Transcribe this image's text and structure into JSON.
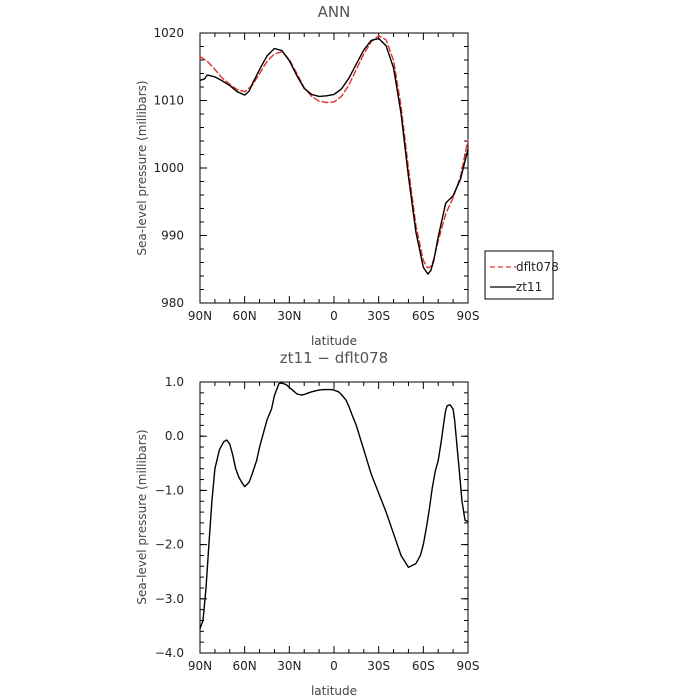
{
  "chart_data": [
    {
      "type": "line",
      "title": "ANN",
      "xlabel": "latitude",
      "ylabel": "Sea-level pressure (millibars)",
      "xlim": [
        90,
        -90
      ],
      "ylim": [
        980,
        1020
      ],
      "x_ticks": [
        90,
        60,
        30,
        0,
        -30,
        -60,
        -90
      ],
      "x_tick_labels": [
        "90N",
        "60N",
        "30N",
        "0",
        "30S",
        "60S",
        "90S"
      ],
      "y_ticks": [
        980,
        990,
        1000,
        1010,
        1020
      ],
      "y_tick_labels": [
        "980",
        "990",
        "1000",
        "1010",
        "1020"
      ],
      "legend_position": "right",
      "series": [
        {
          "name": "dflt078",
          "color": "#e03030",
          "dash": "dashed",
          "x": [
            90,
            85,
            80,
            75,
            70,
            65,
            60,
            55,
            50,
            45,
            40,
            35,
            30,
            25,
            20,
            15,
            10,
            5,
            0,
            -5,
            -10,
            -15,
            -20,
            -25,
            -30,
            -35,
            -40,
            -45,
            -50,
            -55,
            -60,
            -63,
            -65,
            -67,
            -70,
            -75,
            -80,
            -85,
            -90
          ],
          "values": [
            1016.5,
            1015.8,
            1014.6,
            1013.3,
            1012.4,
            1011.6,
            1011.3,
            1012.2,
            1014.0,
            1015.8,
            1016.9,
            1017.2,
            1016.1,
            1014.0,
            1011.9,
            1010.6,
            1009.9,
            1009.7,
            1009.8,
            1010.6,
            1012.3,
            1014.6,
            1016.9,
            1018.7,
            1019.6,
            1019.0,
            1015.9,
            1009.2,
            1000.0,
            991.5,
            986.3,
            985.2,
            985.4,
            986.5,
            989.2,
            993.2,
            995.6,
            998.8,
            1004.2
          ]
        },
        {
          "name": "zt11",
          "color": "#000000",
          "dash": "solid",
          "x": [
            90,
            87,
            85,
            80,
            75,
            70,
            65,
            60,
            57,
            55,
            50,
            45,
            40,
            35,
            30,
            25,
            20,
            15,
            10,
            5,
            0,
            -5,
            -10,
            -15,
            -20,
            -25,
            -30,
            -35,
            -40,
            -45,
            -50,
            -55,
            -60,
            -63,
            -65,
            -67,
            -70,
            -75,
            -80,
            -85,
            -90
          ],
          "values": [
            1013.0,
            1013.2,
            1013.8,
            1013.5,
            1012.9,
            1012.2,
            1011.3,
            1010.8,
            1011.4,
            1012.4,
            1014.6,
            1016.6,
            1017.7,
            1017.4,
            1015.9,
            1013.7,
            1011.8,
            1010.9,
            1010.6,
            1010.7,
            1010.9,
            1011.7,
            1013.3,
            1015.4,
            1017.5,
            1018.9,
            1019.2,
            1018.1,
            1014.8,
            1008.1,
            998.8,
            990.5,
            985.3,
            984.3,
            984.8,
            986.3,
            989.8,
            994.8,
            995.9,
            998.4,
            1002.8
          ]
        }
      ]
    },
    {
      "type": "line",
      "title": "zt11 − dflt078",
      "xlabel": "latitude",
      "ylabel": "Sea-level pressure (millibars)",
      "xlim": [
        90,
        -90
      ],
      "ylim": [
        -4.0,
        1.0
      ],
      "x_ticks": [
        90,
        60,
        30,
        0,
        -30,
        -60,
        -90
      ],
      "x_tick_labels": [
        "90N",
        "60N",
        "30N",
        "0",
        "30S",
        "60S",
        "90S"
      ],
      "y_ticks": [
        -4.0,
        -3.0,
        -2.0,
        -1.0,
        0.0,
        1.0
      ],
      "y_tick_labels": [
        "−4.0",
        "−3.0",
        "−2.0",
        "−1.0",
        "0.0",
        "1.0"
      ],
      "series": [
        {
          "color": "#000000",
          "dash": "solid",
          "x": [
            90,
            88,
            86,
            84,
            82,
            80,
            77,
            74,
            72,
            70,
            68,
            66,
            64,
            62,
            60,
            57,
            55,
            52,
            50,
            47,
            45,
            42,
            40,
            37,
            35,
            32,
            30,
            27,
            25,
            22,
            20,
            17,
            15,
            12,
            10,
            7,
            5,
            2,
            0,
            -3,
            -5,
            -8,
            -10,
            -12,
            -15,
            -20,
            -25,
            -30,
            -35,
            -40,
            -45,
            -50,
            -55,
            -58,
            -60,
            -62,
            -64,
            -66,
            -68,
            -70,
            -72,
            -74,
            -75,
            -76,
            -78,
            -80,
            -81,
            -82,
            -84,
            -86,
            -88,
            -90
          ],
          "values": [
            -3.55,
            -3.4,
            -2.8,
            -2.0,
            -1.2,
            -0.6,
            -0.25,
            -0.1,
            -0.07,
            -0.15,
            -0.35,
            -0.6,
            -0.75,
            -0.85,
            -0.93,
            -0.85,
            -0.7,
            -0.45,
            -0.2,
            0.1,
            0.3,
            0.5,
            0.75,
            0.97,
            0.98,
            0.95,
            0.9,
            0.83,
            0.78,
            0.76,
            0.77,
            0.8,
            0.82,
            0.84,
            0.85,
            0.86,
            0.86,
            0.86,
            0.85,
            0.82,
            0.77,
            0.67,
            0.55,
            0.4,
            0.2,
            -0.25,
            -0.7,
            -1.05,
            -1.4,
            -1.8,
            -2.2,
            -2.42,
            -2.35,
            -2.2,
            -2.0,
            -1.7,
            -1.35,
            -0.95,
            -0.65,
            -0.45,
            -0.1,
            0.3,
            0.48,
            0.56,
            0.58,
            0.5,
            0.3,
            0.0,
            -0.6,
            -1.2,
            -1.55,
            -1.58
          ]
        }
      ]
    }
  ]
}
